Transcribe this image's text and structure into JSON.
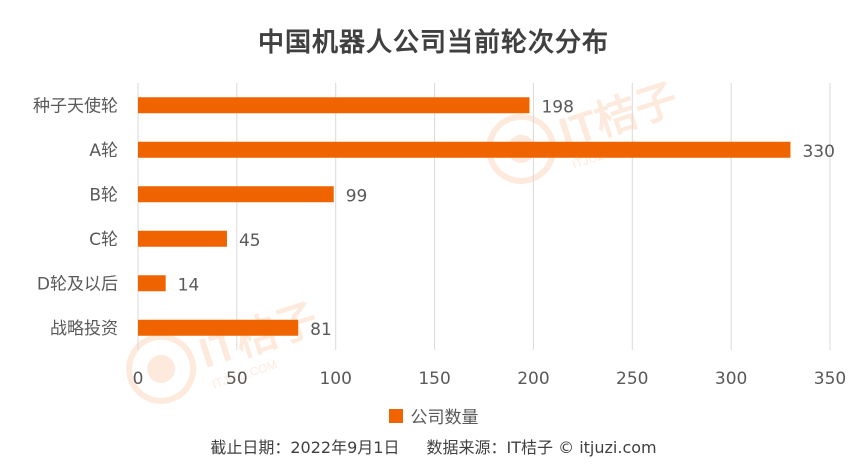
{
  "chart_data": {
    "type": "bar",
    "orientation": "horizontal",
    "title": "中国机器人公司当前轮次分布",
    "categories": [
      "种子天使轮",
      "A轮",
      "B轮",
      "C轮",
      "D轮及以后",
      "战略投资"
    ],
    "series": [
      {
        "name": "公司数量",
        "values": [
          198,
          330,
          99,
          45,
          14,
          81
        ]
      }
    ],
    "xlim": [
      0,
      350
    ],
    "x_ticks": [
      "0",
      "50",
      "100",
      "150",
      "200",
      "250",
      "300",
      "350"
    ],
    "grid": "vertical",
    "legend_position": "bottom",
    "colors": {
      "bar": "#f06400",
      "grid": "#d9d9d9",
      "text": "#595959",
      "title": "#404040"
    }
  },
  "footer": {
    "date": "截止日期：2022年9月1日",
    "source": "数据来源：IT桔子 © itjuzi.com"
  },
  "watermark": {
    "text": "IT桔子",
    "subtext": "ITJUZI.COM"
  }
}
